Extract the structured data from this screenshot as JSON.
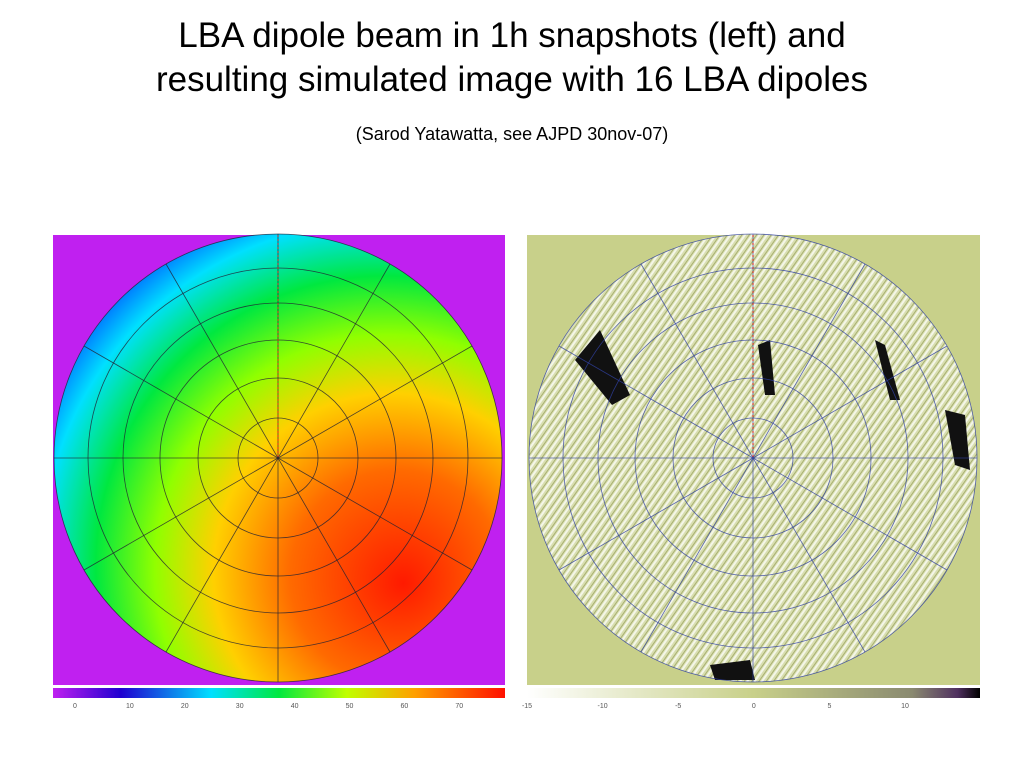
{
  "header": {
    "title_lines": [
      "LBA dipole beam in 1h snapshots (left) and",
      "resulting simulated image with 16 LBA dipoles"
    ],
    "subtitle": "(Sarod Yatawatta, see AJPD  30nov-07)"
  },
  "panels": [
    {
      "colorbar_labels": [
        "0",
        "10",
        "20",
        "30",
        "40",
        "50",
        "60",
        "70"
      ]
    },
    {
      "colorbar_labels": [
        "-15",
        "-10",
        "-5",
        "0",
        "5",
        "10"
      ]
    }
  ]
}
